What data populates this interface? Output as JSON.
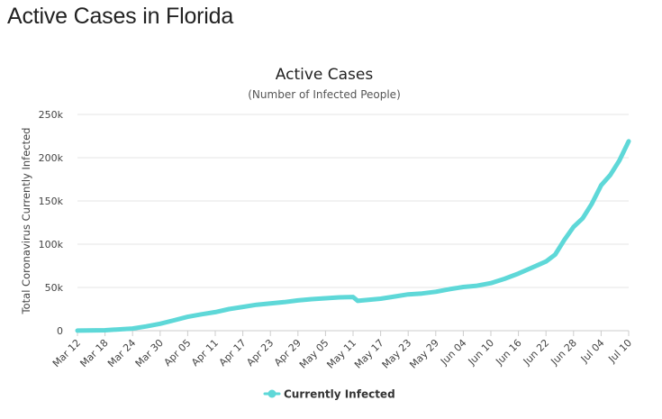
{
  "page": {
    "title": "Active Cases in Florida"
  },
  "colors": {
    "series": "#5ED8D8",
    "grid": "#e6e6e6",
    "axis": "#cccccc"
  },
  "chart_data": {
    "type": "line",
    "title": "Active Cases",
    "subtitle": "(Number of Infected People)",
    "ylabel": "Total Coronavirus Currently Infected",
    "xlabel": "",
    "ylim": [
      0,
      250000
    ],
    "y_ticks": [
      0,
      50000,
      100000,
      150000,
      200000,
      250000
    ],
    "y_tick_labels": [
      "0",
      "50k",
      "100k",
      "150k",
      "200k",
      "250k"
    ],
    "x_tick_labels": [
      "Mar 12",
      "Mar 18",
      "Mar 24",
      "Mar 30",
      "Apr 05",
      "Apr 11",
      "Apr 17",
      "Apr 23",
      "Apr 29",
      "May 05",
      "May 11",
      "May 17",
      "May 23",
      "May 29",
      "Jun 04",
      "Jun 10",
      "Jun 16",
      "Jun 22",
      "Jun 28",
      "Jul 04",
      "Jul 10"
    ],
    "x_tick_day_index": [
      0,
      6,
      12,
      18,
      24,
      30,
      36,
      42,
      48,
      54,
      60,
      66,
      72,
      78,
      84,
      90,
      96,
      102,
      108,
      114,
      120
    ],
    "grid": true,
    "legend_position": "bottom-center",
    "series": [
      {
        "name": "Currently Infected",
        "x_day_index": [
          0,
          6,
          12,
          15,
          18,
          21,
          24,
          27,
          30,
          33,
          36,
          39,
          42,
          45,
          48,
          51,
          54,
          57,
          60,
          61,
          62,
          66,
          69,
          72,
          75,
          78,
          81,
          84,
          87,
          90,
          93,
          96,
          99,
          102,
          104,
          106,
          108,
          110,
          112,
          114,
          116,
          118,
          120
        ],
        "values": [
          100,
          500,
          2500,
          5000,
          8000,
          12000,
          16000,
          19000,
          21500,
          25000,
          27500,
          30000,
          31500,
          33000,
          35000,
          36500,
          37500,
          38500,
          39000,
          34500,
          35000,
          37000,
          39500,
          42000,
          43000,
          45000,
          48000,
          50500,
          52000,
          55000,
          60000,
          66000,
          73000,
          80000,
          88000,
          105000,
          120000,
          130000,
          147000,
          168000,
          180000,
          197000,
          219000
        ]
      }
    ]
  },
  "legend": {
    "label": "Currently Infected"
  }
}
